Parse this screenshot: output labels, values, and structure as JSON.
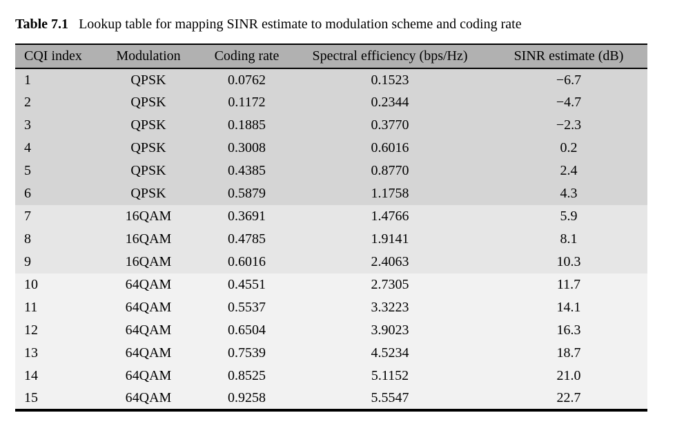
{
  "caption": {
    "label": "Table 7.1",
    "text": "Lookup table for mapping SINR estimate to modulation scheme and coding rate"
  },
  "table": {
    "columns": [
      "CQI index",
      "Modulation",
      "Coding rate",
      "Spectral efficiency (bps/Hz)",
      "SINR estimate (dB)"
    ],
    "rows": [
      {
        "cqi": "1",
        "modulation": "QPSK",
        "coding_rate": "0.0762",
        "spectral_efficiency": "0.1523",
        "sinr": "−6.7"
      },
      {
        "cqi": "2",
        "modulation": "QPSK",
        "coding_rate": "0.1172",
        "spectral_efficiency": "0.2344",
        "sinr": "−4.7"
      },
      {
        "cqi": "3",
        "modulation": "QPSK",
        "coding_rate": "0.1885",
        "spectral_efficiency": "0.3770",
        "sinr": "−2.3"
      },
      {
        "cqi": "4",
        "modulation": "QPSK",
        "coding_rate": "0.3008",
        "spectral_efficiency": "0.6016",
        "sinr": "0.2"
      },
      {
        "cqi": "5",
        "modulation": "QPSK",
        "coding_rate": "0.4385",
        "spectral_efficiency": "0.8770",
        "sinr": "2.4"
      },
      {
        "cqi": "6",
        "modulation": "QPSK",
        "coding_rate": "0.5879",
        "spectral_efficiency": "1.1758",
        "sinr": "4.3"
      },
      {
        "cqi": "7",
        "modulation": "16QAM",
        "coding_rate": "0.3691",
        "spectral_efficiency": "1.4766",
        "sinr": "5.9"
      },
      {
        "cqi": "8",
        "modulation": "16QAM",
        "coding_rate": "0.4785",
        "spectral_efficiency": "1.9141",
        "sinr": "8.1"
      },
      {
        "cqi": "9",
        "modulation": "16QAM",
        "coding_rate": "0.6016",
        "spectral_efficiency": "2.4063",
        "sinr": "10.3"
      },
      {
        "cqi": "10",
        "modulation": "64QAM",
        "coding_rate": "0.4551",
        "spectral_efficiency": "2.7305",
        "sinr": "11.7"
      },
      {
        "cqi": "11",
        "modulation": "64QAM",
        "coding_rate": "0.5537",
        "spectral_efficiency": "3.3223",
        "sinr": "14.1"
      },
      {
        "cqi": "12",
        "modulation": "64QAM",
        "coding_rate": "0.6504",
        "spectral_efficiency": "3.9023",
        "sinr": "16.3"
      },
      {
        "cqi": "13",
        "modulation": "64QAM",
        "coding_rate": "0.7539",
        "spectral_efficiency": "4.5234",
        "sinr": "18.7"
      },
      {
        "cqi": "14",
        "modulation": "64QAM",
        "coding_rate": "0.8525",
        "spectral_efficiency": "5.1152",
        "sinr": "21.0"
      },
      {
        "cqi": "15",
        "modulation": "64QAM",
        "coding_rate": "0.9258",
        "spectral_efficiency": "5.5547",
        "sinr": "22.7"
      }
    ]
  },
  "colors": {
    "page_bg": "#ffffff",
    "header_bg": "#b1b1b1",
    "rule_color": "#000000",
    "text_color": "#000000",
    "group_colors": {
      "QPSK": "#d5d5d5",
      "16QAM": "#e6e6e6",
      "64QAM": "#f2f2f2"
    }
  }
}
